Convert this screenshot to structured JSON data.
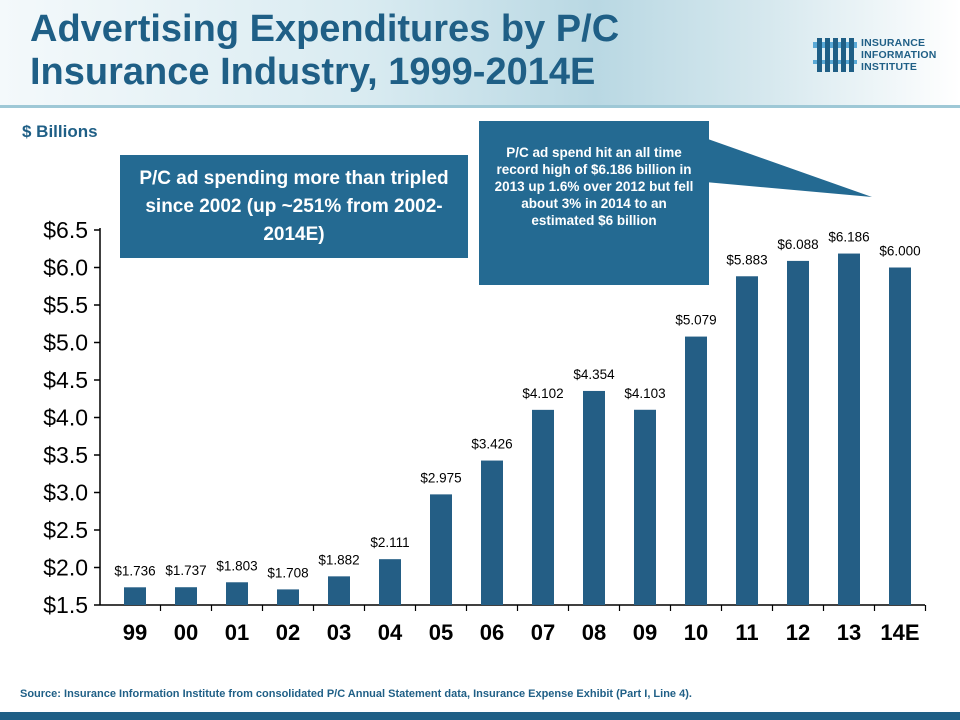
{
  "header": {
    "title_line1": "Advertising Expenditures by P/C",
    "title_line2": "Insurance Industry, 1999-2014E"
  },
  "logo": {
    "line1": "INSURANCE",
    "line2": "INFORMATION",
    "line3": "INSTITUTE"
  },
  "units_label": "$ Billions",
  "callouts": {
    "left": "P/C ad spending more than tripled since 2002  (up ~251% from 2002-2014E)",
    "right": "P/C ad spend hit an all time record high of $6.186 billion in 2013 up 1.6% over 2012 but fell about 3% in 2014 to an estimated $6 billion"
  },
  "source": "Source: Insurance Information Institute from consolidated P/C Annual Statement data, Insurance Expense Exhibit (Part I, Line 4).",
  "colors": {
    "bar": "#245e85",
    "title": "#1f5f86",
    "callout": "#246a92"
  },
  "chart_data": {
    "type": "bar",
    "categories": [
      "99",
      "00",
      "01",
      "02",
      "03",
      "04",
      "05",
      "06",
      "07",
      "08",
      "09",
      "10",
      "11",
      "12",
      "13",
      "14E"
    ],
    "values": [
      1.736,
      1.737,
      1.803,
      1.708,
      1.882,
      2.111,
      2.975,
      3.426,
      4.102,
      4.354,
      4.103,
      5.079,
      5.883,
      6.088,
      6.186,
      6.0
    ],
    "data_labels": [
      "$1.736",
      "$1.737",
      "$1.803",
      "$1.708",
      "$1.882",
      "$2.111",
      "$2.975",
      "$3.426",
      "$4.102",
      "$4.354",
      "$4.103",
      "$5.079",
      "$5.883",
      "$6.088",
      "$6.186",
      "$6.000"
    ],
    "ylim": [
      1.5,
      6.5
    ],
    "yticks": [
      1.5,
      2.0,
      2.5,
      3.0,
      3.5,
      4.0,
      4.5,
      5.0,
      5.5,
      6.0,
      6.5
    ],
    "ytick_labels": [
      "$1.5",
      "$2.0",
      "$2.5",
      "$3.0",
      "$3.5",
      "$4.0",
      "$4.5",
      "$5.0",
      "$5.5",
      "$6.0",
      "$6.5"
    ],
    "title": "",
    "xlabel": "",
    "ylabel": "$ Billions",
    "grid": false,
    "legend": "none"
  }
}
